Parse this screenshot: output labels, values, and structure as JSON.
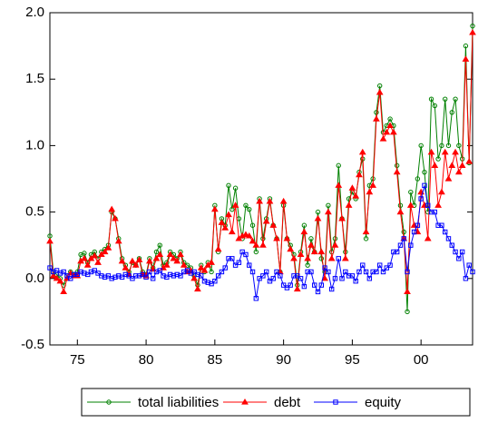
{
  "chart_data": {
    "type": "line",
    "x": [
      1973,
      1973.25,
      1973.5,
      1973.75,
      1974,
      1974.25,
      1974.5,
      1974.75,
      1975,
      1975.25,
      1975.5,
      1975.75,
      1976,
      1976.25,
      1976.5,
      1976.75,
      1977,
      1977.25,
      1977.5,
      1977.75,
      1978,
      1978.25,
      1978.5,
      1978.75,
      1979,
      1979.25,
      1979.5,
      1979.75,
      1980,
      1980.25,
      1980.5,
      1980.75,
      1981,
      1981.25,
      1981.5,
      1981.75,
      1982,
      1982.25,
      1982.5,
      1982.75,
      1983,
      1983.25,
      1983.5,
      1983.75,
      1984,
      1984.25,
      1984.5,
      1984.75,
      1985,
      1985.25,
      1985.5,
      1985.75,
      1986,
      1986.25,
      1986.5,
      1986.75,
      1987,
      1987.25,
      1987.5,
      1987.75,
      1988,
      1988.25,
      1988.5,
      1988.75,
      1989,
      1989.25,
      1989.5,
      1989.75,
      1990,
      1990.25,
      1990.5,
      1990.75,
      1991,
      1991.25,
      1991.5,
      1991.75,
      1992,
      1992.25,
      1992.5,
      1992.75,
      1993,
      1993.25,
      1993.5,
      1993.75,
      1994,
      1994.25,
      1994.5,
      1994.75,
      1995,
      1995.25,
      1995.5,
      1995.75,
      1996,
      1996.25,
      1996.5,
      1996.75,
      1997,
      1997.25,
      1997.5,
      1997.75,
      1998,
      1998.25,
      1998.5,
      1998.75,
      1999,
      1999.25,
      1999.5,
      1999.75,
      2000,
      2000.25,
      2000.5,
      2000.75,
      2001,
      2001.25,
      2001.5,
      2001.75,
      2002,
      2002.25,
      2002.5,
      2002.75,
      2003,
      2003.25,
      2003.5,
      2003.75
    ],
    "series": [
      {
        "name": "total liabilities",
        "color": "#008000",
        "marker": "circle",
        "values": [
          0.32,
          0.05,
          0.03,
          0.0,
          -0.05,
          0.02,
          0.05,
          0.03,
          0.05,
          0.18,
          0.19,
          0.12,
          0.18,
          0.2,
          0.15,
          0.2,
          0.22,
          0.25,
          0.5,
          0.45,
          0.3,
          0.15,
          0.1,
          0.05,
          0.12,
          0.1,
          0.15,
          0.05,
          0.03,
          0.15,
          0.08,
          0.2,
          0.25,
          0.1,
          0.12,
          0.2,
          0.18,
          0.15,
          0.2,
          0.12,
          0.1,
          0.08,
          0.02,
          -0.05,
          0.1,
          0.05,
          0.12,
          0.05,
          0.55,
          0.2,
          0.45,
          0.4,
          0.7,
          0.52,
          0.68,
          0.45,
          0.3,
          0.55,
          0.52,
          0.4,
          0.2,
          0.6,
          0.3,
          0.45,
          0.6,
          0.4,
          0.3,
          0.05,
          0.55,
          0.3,
          0.25,
          0.18,
          -0.05,
          0.2,
          0.4,
          0.1,
          0.3,
          0.2,
          0.5,
          0.15,
          0.05,
          0.55,
          0.2,
          0.3,
          0.85,
          0.45,
          0.2,
          0.6,
          0.65,
          0.6,
          0.8,
          0.9,
          0.3,
          0.7,
          0.75,
          1.25,
          1.45,
          1.1,
          1.15,
          1.2,
          1.15,
          0.85,
          0.55,
          0.35,
          -0.25,
          0.65,
          0.55,
          0.75,
          1.0,
          0.8,
          0.5,
          1.35,
          1.3,
          0.9,
          1.0,
          1.35,
          1.0,
          1.25,
          1.35,
          1.0,
          0.9,
          1.75,
          0.87,
          1.9
        ]
      },
      {
        "name": "debt",
        "color": "#ff0000",
        "marker": "triangle",
        "values": [
          0.28,
          0.02,
          0.0,
          -0.02,
          -0.1,
          0.0,
          0.04,
          0.02,
          0.02,
          0.13,
          0.15,
          0.1,
          0.15,
          0.17,
          0.12,
          0.18,
          0.2,
          0.23,
          0.52,
          0.45,
          0.28,
          0.13,
          0.08,
          0.03,
          0.13,
          0.1,
          0.14,
          0.03,
          0.02,
          0.13,
          0.07,
          0.15,
          0.18,
          0.08,
          0.1,
          0.18,
          0.15,
          0.13,
          0.18,
          0.1,
          0.05,
          0.06,
          0.0,
          -0.08,
          0.08,
          0.06,
          0.1,
          0.12,
          0.52,
          0.22,
          0.42,
          0.38,
          0.48,
          0.35,
          0.55,
          0.3,
          0.32,
          0.33,
          0.32,
          0.28,
          0.25,
          0.58,
          0.25,
          0.43,
          0.58,
          0.4,
          0.3,
          0.05,
          0.58,
          0.3,
          0.22,
          0.15,
          -0.08,
          0.18,
          0.35,
          0.15,
          0.25,
          0.2,
          0.45,
          0.2,
          0.0,
          0.5,
          0.15,
          0.25,
          0.7,
          0.45,
          0.15,
          0.55,
          0.68,
          0.62,
          0.78,
          0.95,
          0.35,
          0.65,
          0.7,
          1.2,
          1.4,
          1.05,
          1.1,
          1.15,
          1.1,
          0.8,
          0.5,
          0.3,
          -0.1,
          0.55,
          0.4,
          0.35,
          0.65,
          0.55,
          0.3,
          0.95,
          0.85,
          0.55,
          0.65,
          0.95,
          0.75,
          0.85,
          0.95,
          0.8,
          0.85,
          1.65,
          0.88,
          1.85
        ]
      },
      {
        "name": "equity",
        "color": "#0000ff",
        "marker": "square",
        "values": [
          0.08,
          0.05,
          0.06,
          0.04,
          0.05,
          0.02,
          0.0,
          0.03,
          0.03,
          0.05,
          0.04,
          0.03,
          0.05,
          0.06,
          0.04,
          0.02,
          0.01,
          0.02,
          0.0,
          0.01,
          0.02,
          0.01,
          0.03,
          0.02,
          0.0,
          0.02,
          0.02,
          0.03,
          0.01,
          0.05,
          0.0,
          0.05,
          0.06,
          0.02,
          0.01,
          0.03,
          0.02,
          0.03,
          0.02,
          0.05,
          0.06,
          0.04,
          0.05,
          0.03,
          0.02,
          -0.02,
          -0.03,
          -0.04,
          -0.02,
          0.02,
          0.05,
          0.08,
          0.15,
          0.15,
          0.1,
          0.12,
          0.2,
          0.18,
          0.1,
          0.05,
          -0.15,
          0.0,
          0.02,
          0.05,
          -0.02,
          0.0,
          0.05,
          0.02,
          -0.05,
          -0.07,
          -0.05,
          0.02,
          0.02,
          0.0,
          -0.06,
          0.05,
          0.05,
          -0.05,
          -0.1,
          -0.05,
          0.08,
          0.05,
          -0.08,
          0.0,
          0.15,
          0.0,
          0.05,
          0.02,
          0.02,
          -0.02,
          0.05,
          0.1,
          0.05,
          0.0,
          0.05,
          0.05,
          0.1,
          0.05,
          0.08,
          0.1,
          0.2,
          0.2,
          0.25,
          0.3,
          0.05,
          0.25,
          0.35,
          0.4,
          0.6,
          0.7,
          0.55,
          0.5,
          0.5,
          0.4,
          0.4,
          0.35,
          0.3,
          0.25,
          0.2,
          0.15,
          0.2,
          0.0,
          0.1,
          0.05
        ]
      }
    ],
    "xlim": [
      1973,
      2003.75
    ],
    "xticks": [
      {
        "value": 1975,
        "label": "75"
      },
      {
        "value": 1980,
        "label": "80"
      },
      {
        "value": 1985,
        "label": "85"
      },
      {
        "value": 1990,
        "label": "90"
      },
      {
        "value": 1995,
        "label": "95"
      },
      {
        "value": 2000,
        "label": "00"
      }
    ],
    "ylim": [
      -0.5,
      2
    ],
    "yticks": [
      {
        "value": -0.5,
        "label": "-0.5"
      },
      {
        "value": 0,
        "label": "0.0"
      },
      0.5,
      {
        "value": 1,
        "label": "1.0"
      },
      1.5,
      {
        "value": 2,
        "label": "2.0"
      }
    ],
    "legend": "bottom"
  }
}
